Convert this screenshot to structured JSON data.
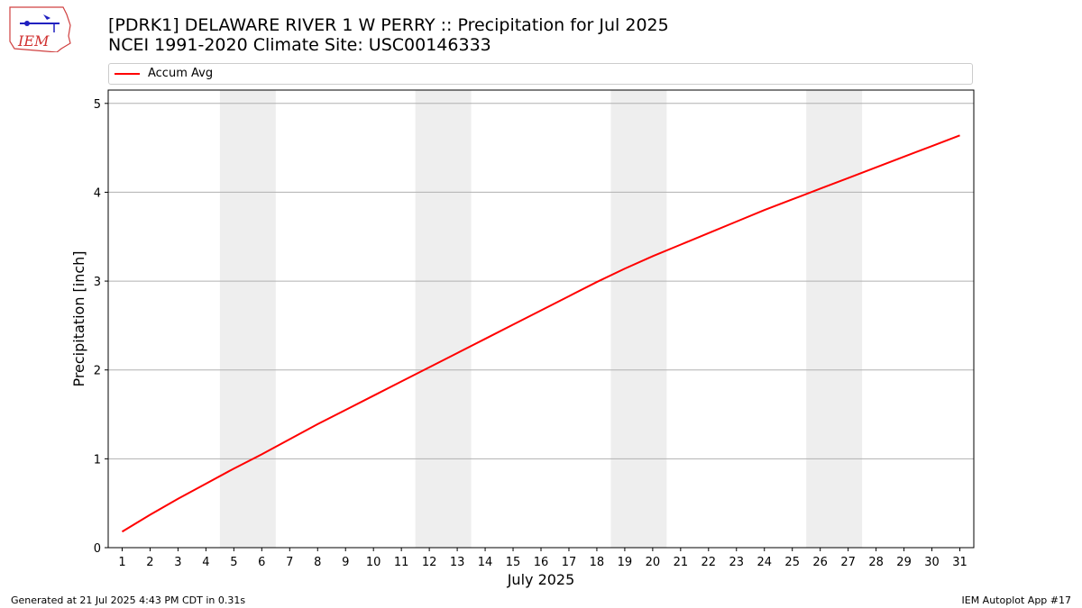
{
  "header": {
    "title_line1": "[PDRK1] DELAWARE RIVER 1 W PERRY :: Precipitation for Jul 2025",
    "title_line2": "NCEI 1991-2020 Climate Site: USC00146333"
  },
  "logo": {
    "text": "IEM",
    "icon": "iem-iowa-logo-icon"
  },
  "footer": {
    "generated": "Generated at 21 Jul 2025 4:43 PM CDT in 0.31s",
    "app": "IEM Autoplot App #17"
  },
  "colors": {
    "series": "#ff0000",
    "weekend_band": "#eeeeee",
    "grid": "#b0b0b0"
  },
  "chart_data": {
    "type": "line",
    "title": "[PDRK1] DELAWARE RIVER 1 W PERRY :: Precipitation for Jul 2025",
    "subtitle": "NCEI 1991-2020 Climate Site: USC00146333",
    "xlabel": "July 2025",
    "ylabel": "Precipitation [inch]",
    "x": [
      1,
      2,
      3,
      4,
      5,
      6,
      7,
      8,
      9,
      10,
      11,
      12,
      13,
      14,
      15,
      16,
      17,
      18,
      19,
      20,
      21,
      22,
      23,
      24,
      25,
      26,
      27,
      28,
      29,
      30,
      31
    ],
    "xlim": [
      0.5,
      31.5
    ],
    "ylim": [
      0,
      5.15
    ],
    "yticks": [
      0,
      1,
      2,
      3,
      4,
      5
    ],
    "grid": "horizontal",
    "legend_position": "top",
    "shaded_days": [
      [
        5,
        6
      ],
      [
        12,
        13
      ],
      [
        19,
        20
      ],
      [
        26,
        27
      ]
    ],
    "series": [
      {
        "name": "Accum Avg",
        "color": "#ff0000",
        "values": [
          0.18,
          0.37,
          0.55,
          0.72,
          0.89,
          1.05,
          1.22,
          1.39,
          1.55,
          1.71,
          1.87,
          2.03,
          2.19,
          2.35,
          2.51,
          2.67,
          2.83,
          2.99,
          3.14,
          3.28,
          3.41,
          3.54,
          3.67,
          3.8,
          3.92,
          4.04,
          4.16,
          4.28,
          4.4,
          4.52,
          4.64
        ]
      }
    ]
  }
}
